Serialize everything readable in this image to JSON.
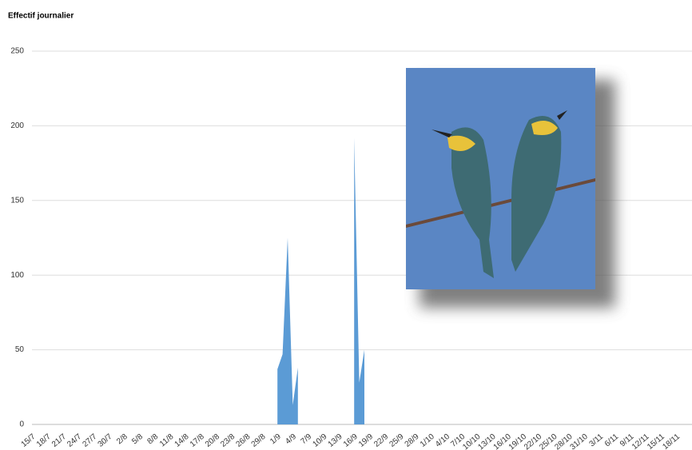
{
  "chart_data": {
    "type": "area",
    "title": "Effectif journalier",
    "categories": [
      "15/7",
      null,
      null,
      "18/7",
      null,
      null,
      "21/7",
      null,
      null,
      "24/7",
      null,
      null,
      "27/7",
      null,
      null,
      "30/7",
      null,
      null,
      "2/8",
      null,
      null,
      "5/8",
      null,
      null,
      "8/8",
      null,
      null,
      "11/8",
      null,
      null,
      "14/8",
      null,
      null,
      "17/8",
      null,
      null,
      "20/8",
      null,
      null,
      "23/8",
      null,
      null,
      "26/8",
      null,
      null,
      "29/8",
      null,
      null,
      "1/9",
      null,
      null,
      "4/9",
      null,
      null,
      "7/9",
      null,
      null,
      "10/9",
      null,
      null,
      "13/9",
      null,
      null,
      "16/9",
      null,
      null,
      "19/9",
      null,
      null,
      "22/9",
      null,
      null,
      "25/9",
      null,
      null,
      "28/9",
      null,
      null,
      "1/10",
      null,
      null,
      "4/10",
      null,
      null,
      "7/10",
      null,
      null,
      "10/10",
      null,
      null,
      "13/10",
      null,
      null,
      "16/10",
      null,
      null,
      "19/10",
      null,
      null,
      "22/10",
      null,
      null,
      "25/10",
      null,
      null,
      "28/10",
      null,
      null,
      "31/10",
      null,
      null,
      "3/11",
      null,
      null,
      "6/11",
      null,
      null,
      "9/11",
      null,
      null,
      "12/11",
      null,
      null,
      "15/11",
      null,
      null,
      "18/11",
      null,
      null
    ],
    "values": [
      null,
      null,
      null,
      null,
      null,
      null,
      null,
      null,
      null,
      null,
      null,
      null,
      null,
      null,
      null,
      null,
      null,
      null,
      null,
      null,
      null,
      null,
      null,
      null,
      null,
      null,
      null,
      null,
      null,
      null,
      null,
      null,
      null,
      null,
      null,
      null,
      null,
      null,
      null,
      null,
      null,
      null,
      null,
      null,
      null,
      null,
      null,
      null,
      37,
      47,
      125,
      13,
      38,
      null,
      null,
      null,
      null,
      null,
      null,
      null,
      null,
      null,
      null,
      192,
      28,
      50,
      null,
      null,
      null,
      null,
      null,
      null,
      null,
      null,
      null,
      null,
      null,
      null,
      null,
      null,
      null,
      null,
      null,
      null,
      null,
      null,
      null,
      null,
      null,
      null,
      null,
      null,
      null,
      null,
      null,
      null,
      null,
      null,
      null,
      null,
      null,
      null,
      null,
      null,
      null,
      null,
      null,
      null,
      null,
      null,
      null,
      null,
      null,
      null,
      null,
      null,
      null,
      null,
      null,
      null,
      null,
      null,
      null,
      null,
      null,
      null,
      null,
      null,
      null
    ],
    "color": "#5b9bd5",
    "ylim": [
      0,
      250
    ],
    "yticks": [
      0,
      50,
      100,
      150,
      200,
      250
    ],
    "grid": true
  }
}
